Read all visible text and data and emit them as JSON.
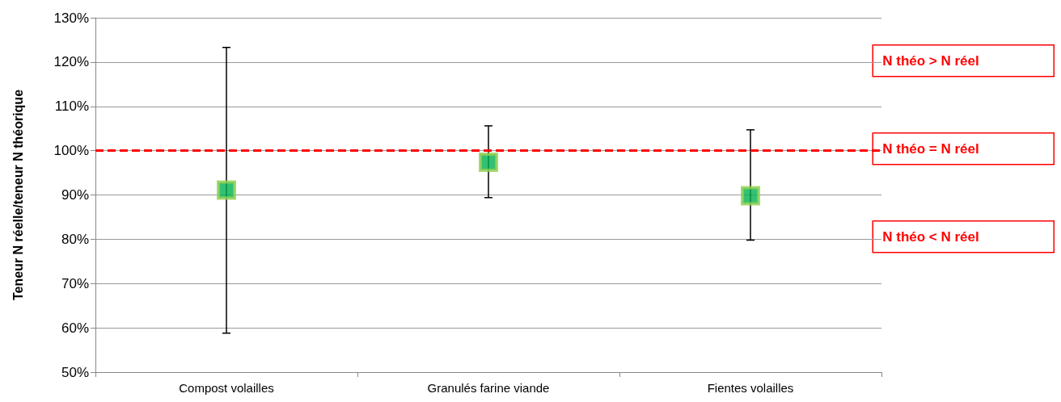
{
  "chart_data": {
    "type": "scatter",
    "ylabel": "Teneur N réelle/teneur N théorique",
    "categories": [
      "Compost volailles",
      "Granulés farine viande",
      "Fientes volailles"
    ],
    "series": [
      {
        "color": "#00b050",
        "values": [
          91.1,
          97.4,
          89.8
        ],
        "errors": [
          [
            58.8,
            123.3
          ],
          [
            89.4,
            105.6
          ],
          [
            79.8,
            104.7
          ]
        ]
      }
    ],
    "marker": "square",
    "grid": "y",
    "ylim": [
      50,
      130
    ],
    "yticks": [
      {
        "value": 50,
        "label": "50%"
      },
      {
        "value": 60,
        "label": "60%"
      },
      {
        "value": 70,
        "label": "70%"
      },
      {
        "value": 80,
        "label": "80%"
      },
      {
        "value": 90,
        "label": "90%"
      },
      {
        "value": 100,
        "label": "100%"
      },
      {
        "value": 110,
        "label": "110%"
      },
      {
        "value": 120,
        "label": "120%"
      },
      {
        "value": 130,
        "label": "130%"
      }
    ],
    "ref_lines": [
      {
        "axis": "y",
        "value": 100,
        "color": "#ff0000",
        "line_style": "dashed"
      }
    ],
    "annotations": [
      "N théo > N réel",
      "N théo = N réel",
      "N théo < N réel"
    ]
  }
}
